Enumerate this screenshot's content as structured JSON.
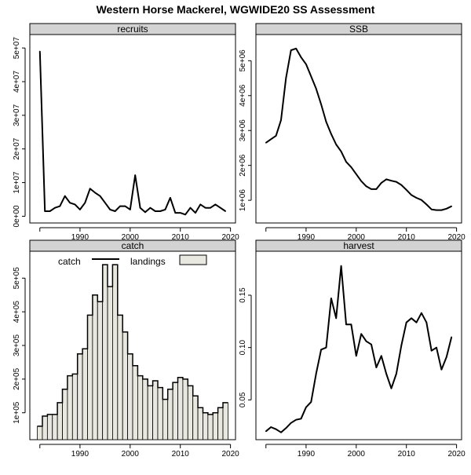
{
  "title": "Western Horse Mackerel, WGWIDE20 SS Assessment",
  "chart_data": [
    {
      "type": "line",
      "title": "recruits",
      "xlim": [
        1980,
        2021
      ],
      "ylim": [
        -2000000,
        54000000
      ],
      "xticks": [
        1990,
        2000,
        2010,
        2020
      ],
      "yticks": [
        0,
        10000000,
        20000000,
        30000000,
        40000000,
        50000000
      ],
      "ytick_labels": [
        "0e+00",
        "1e+07",
        "2e+07",
        "3e+07",
        "4e+07",
        "5e+07"
      ],
      "x": [
        1982,
        1983,
        1984,
        1985,
        1986,
        1987,
        1988,
        1989,
        1990,
        1991,
        1992,
        1993,
        1994,
        1995,
        1996,
        1997,
        1998,
        1999,
        2000,
        2001,
        2002,
        2003,
        2004,
        2005,
        2006,
        2007,
        2008,
        2009,
        2010,
        2011,
        2012,
        2013,
        2014,
        2015,
        2016,
        2017,
        2018,
        2019
      ],
      "values": [
        49000000,
        1500000,
        1500000,
        2500000,
        3000000,
        6000000,
        4000000,
        3500000,
        2000000,
        4000000,
        8200000,
        7000000,
        6000000,
        4000000,
        2000000,
        1500000,
        3000000,
        3000000,
        2000000,
        12200000,
        2500000,
        1200000,
        2500000,
        1500000,
        1500000,
        2000000,
        5500000,
        1000000,
        1000000,
        500000,
        2500000,
        1000000,
        3500000,
        2500000,
        2500000,
        3500000,
        2500000,
        1500000
      ]
    },
    {
      "type": "line",
      "title": "SSB",
      "xlim": [
        1980,
        2021
      ],
      "ylim": [
        350000,
        5750000
      ],
      "xticks": [
        1990,
        2000,
        2010,
        2020
      ],
      "yticks": [
        1000000,
        2000000,
        3000000,
        4000000,
        5000000
      ],
      "ytick_labels": [
        "1e+06",
        "2e+06",
        "3e+06",
        "4e+06",
        "5e+06"
      ],
      "x": [
        1982,
        1983,
        1984,
        1985,
        1986,
        1987,
        1988,
        1989,
        1990,
        1991,
        1992,
        1993,
        1994,
        1995,
        1996,
        1997,
        1998,
        1999,
        2000,
        2001,
        2002,
        2003,
        2004,
        2005,
        2006,
        2007,
        2008,
        2009,
        2010,
        2011,
        2012,
        2013,
        2014,
        2015,
        2016,
        2017,
        2018,
        2019
      ],
      "values": [
        2650000,
        2750000,
        2850000,
        3300000,
        4500000,
        5300000,
        5350000,
        5100000,
        4900000,
        4550000,
        4200000,
        3750000,
        3250000,
        2900000,
        2600000,
        2400000,
        2100000,
        1950000,
        1750000,
        1550000,
        1400000,
        1320000,
        1320000,
        1500000,
        1600000,
        1560000,
        1530000,
        1440000,
        1300000,
        1150000,
        1070000,
        1010000,
        880000,
        740000,
        720000,
        720000,
        760000,
        830000
      ]
    },
    {
      "type": "bar",
      "title": "catch",
      "legend": [
        "catch",
        "landings"
      ],
      "legend_position": "top",
      "xlim": [
        1980,
        2021
      ],
      "ylim": [
        20000,
        580000
      ],
      "xticks": [
        1990,
        2000,
        2010,
        2020
      ],
      "yticks": [
        100000,
        200000,
        300000,
        400000,
        500000
      ],
      "ytick_labels": [
        "1e+05",
        "2e+05",
        "3e+05",
        "4e+05",
        "5e+05"
      ],
      "x": [
        1982,
        1983,
        1984,
        1985,
        1986,
        1987,
        1988,
        1989,
        1990,
        1991,
        1992,
        1993,
        1994,
        1995,
        1996,
        1997,
        1998,
        1999,
        2000,
        2001,
        2002,
        2003,
        2004,
        2005,
        2006,
        2007,
        2008,
        2009,
        2010,
        2011,
        2012,
        2013,
        2014,
        2015,
        2016,
        2017,
        2018,
        2019
      ],
      "values": [
        60000,
        90000,
        95000,
        95000,
        130000,
        170000,
        210000,
        215000,
        275000,
        290000,
        390000,
        450000,
        430000,
        540000,
        475000,
        540000,
        390000,
        340000,
        275000,
        240000,
        210000,
        200000,
        180000,
        195000,
        175000,
        140000,
        170000,
        190000,
        205000,
        200000,
        180000,
        150000,
        115000,
        100000,
        95000,
        100000,
        115000,
        130000
      ],
      "series": [
        {
          "name": "catch",
          "values": [
            60000,
            90000,
            95000,
            95000,
            130000,
            170000,
            210000,
            215000,
            275000,
            290000,
            390000,
            450000,
            430000,
            540000,
            475000,
            540000,
            390000,
            340000,
            275000,
            240000,
            210000,
            200000,
            180000,
            195000,
            175000,
            140000,
            170000,
            190000,
            205000,
            200000,
            180000,
            150000,
            115000,
            100000,
            95000,
            100000,
            115000,
            130000
          ]
        },
        {
          "name": "landings",
          "values": [
            60000,
            90000,
            95000,
            95000,
            130000,
            170000,
            210000,
            215000,
            275000,
            290000,
            390000,
            450000,
            430000,
            540000,
            475000,
            540000,
            390000,
            340000,
            275000,
            240000,
            210000,
            200000,
            180000,
            195000,
            175000,
            140000,
            170000,
            190000,
            205000,
            200000,
            180000,
            150000,
            115000,
            100000,
            95000,
            100000,
            115000,
            130000
          ]
        }
      ]
    },
    {
      "type": "line",
      "title": "harvest",
      "xlim": [
        1980,
        2021
      ],
      "ylim": [
        0.012,
        0.192
      ],
      "xticks": [
        1990,
        2000,
        2010,
        2020
      ],
      "yticks": [
        0.05,
        0.1,
        0.15
      ],
      "ytick_labels": [
        "0.05",
        "0.10",
        "0.15"
      ],
      "x": [
        1982,
        1983,
        1984,
        1985,
        1986,
        1987,
        1988,
        1989,
        1990,
        1991,
        1992,
        1993,
        1994,
        1995,
        1996,
        1997,
        1998,
        1999,
        2000,
        2001,
        2002,
        2003,
        2004,
        2005,
        2006,
        2007,
        2008,
        2009,
        2010,
        2011,
        2012,
        2013,
        2014,
        2015,
        2016,
        2017,
        2018,
        2019
      ],
      "values": [
        0.02,
        0.024,
        0.022,
        0.019,
        0.023,
        0.028,
        0.031,
        0.032,
        0.043,
        0.048,
        0.075,
        0.098,
        0.1,
        0.147,
        0.128,
        0.178,
        0.122,
        0.122,
        0.092,
        0.113,
        0.106,
        0.103,
        0.081,
        0.092,
        0.075,
        0.061,
        0.075,
        0.102,
        0.124,
        0.128,
        0.124,
        0.133,
        0.124,
        0.097,
        0.1,
        0.079,
        0.091,
        0.11
      ]
    }
  ]
}
